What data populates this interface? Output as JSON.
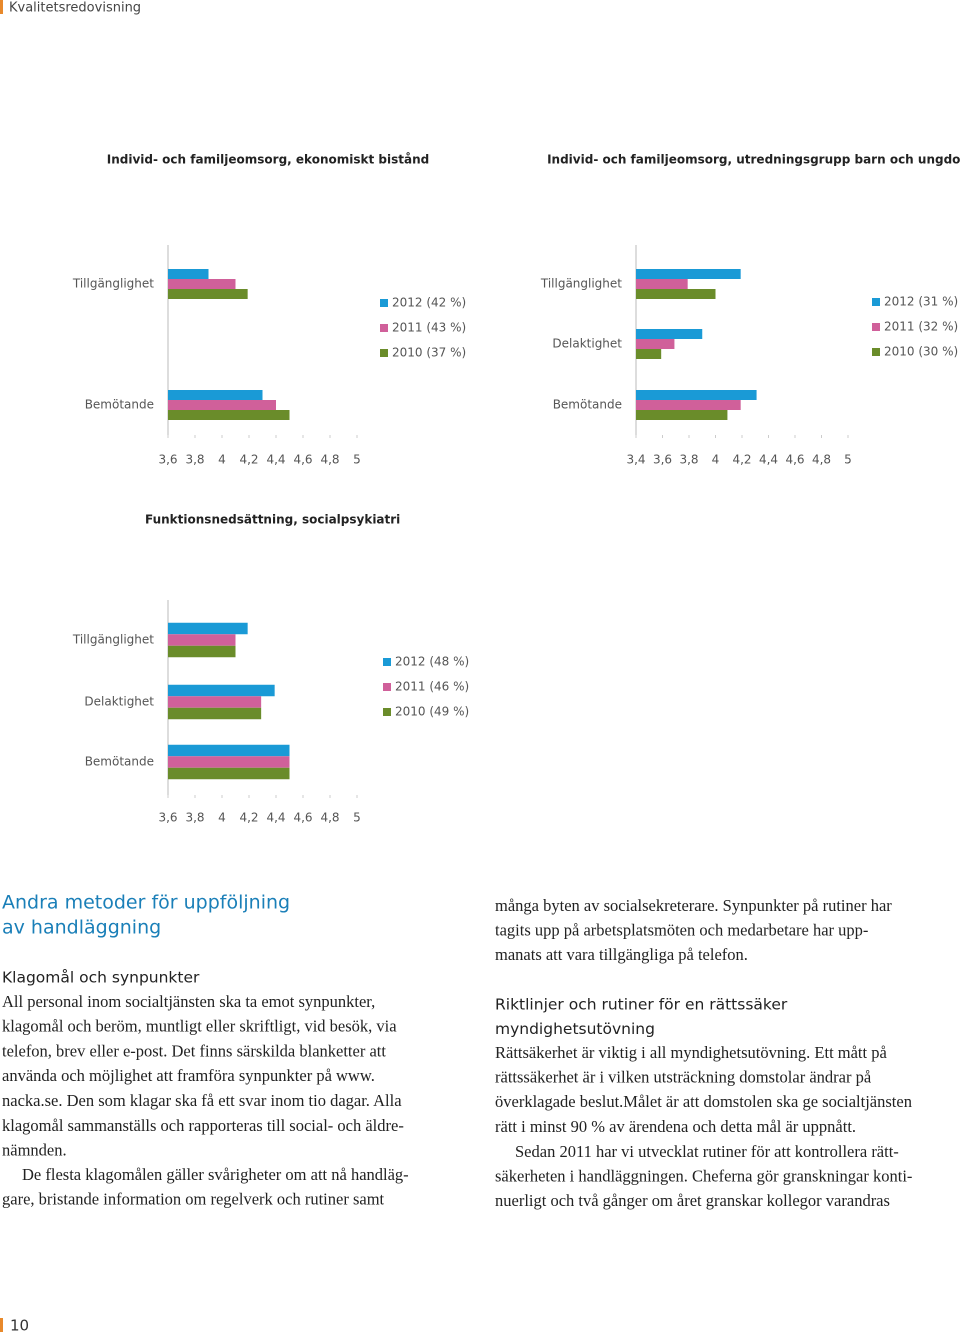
{
  "header": {
    "title": "Kvalitetsredovisning"
  },
  "chart_data": [
    {
      "type": "bar",
      "orientation": "horizontal",
      "title": "Individ- och familjeomsorg, ekonomiskt bistånd",
      "categories": [
        "Tillgänglighet",
        null,
        "Bemötande"
      ],
      "series": [
        {
          "name": "2012 (42 %)",
          "color": "#1a9ad6",
          "values": [
            3.9,
            null,
            4.3
          ]
        },
        {
          "name": "2011 (43 %)",
          "color": "#d0609a",
          "values": [
            4.1,
            null,
            4.4
          ]
        },
        {
          "name": "2010 (37 %)",
          "color": "#6a8c2a",
          "values": [
            4.19,
            null,
            4.5
          ]
        }
      ],
      "xlim": [
        3.6,
        5
      ],
      "xticks": [
        {
          "value": 3.6,
          "label": "3,6"
        },
        {
          "value": 3.8,
          "label": "3,8"
        },
        4,
        {
          "value": 4.2,
          "label": "4,2"
        },
        {
          "value": 4.4,
          "label": "4,4"
        },
        {
          "value": 4.6,
          "label": "4,6"
        },
        {
          "value": 4.8,
          "label": "4,8"
        },
        5
      ]
    },
    {
      "type": "bar",
      "orientation": "horizontal",
      "title": "Individ- och familjeomsorg, utredningsgrupp barn och ungdom",
      "categories": [
        "Tillgänglighet",
        "Delaktighet",
        "Bemötande"
      ],
      "series": [
        {
          "name": "2012 (31 %)",
          "color": "#1a9ad6",
          "values": [
            4.19,
            3.9,
            4.31
          ]
        },
        {
          "name": "2011 (32 %)",
          "color": "#d0609a",
          "values": [
            3.79,
            3.69,
            4.19
          ]
        },
        {
          "name": "2010 (30 %)",
          "color": "#6a8c2a",
          "values": [
            4.0,
            3.59,
            4.09
          ]
        }
      ],
      "xlim": [
        3.4,
        5
      ],
      "xticks": [
        {
          "value": 3.4,
          "label": "3,4"
        },
        {
          "value": 3.6,
          "label": "3,6"
        },
        {
          "value": 3.8,
          "label": "3,8"
        },
        4,
        {
          "value": 4.2,
          "label": "4,2"
        },
        {
          "value": 4.4,
          "label": "4,4"
        },
        {
          "value": 4.6,
          "label": "4,6"
        },
        {
          "value": 4.8,
          "label": "4,8"
        },
        5
      ]
    },
    {
      "type": "bar",
      "orientation": "horizontal",
      "title": "Funktionsnedsättning, socialpsykiatri",
      "categories": [
        "Tillgänglighet",
        "Delaktighet",
        "Bemötande"
      ],
      "series": [
        {
          "name": "2012 (48 %)",
          "color": "#1a9ad6",
          "values": [
            4.19,
            4.39,
            4.5
          ]
        },
        {
          "name": "2011 (46 %)",
          "color": "#d0609a",
          "values": [
            4.1,
            4.29,
            4.5
          ]
        },
        {
          "name": "2010 (49 %)",
          "color": "#6a8c2a",
          "values": [
            4.1,
            4.29,
            4.5
          ]
        }
      ],
      "xlim": [
        3.6,
        5
      ],
      "xticks": [
        {
          "value": 3.6,
          "label": "3,6"
        },
        {
          "value": 3.8,
          "label": "3,8"
        },
        4,
        {
          "value": 4.2,
          "label": "4,2"
        },
        {
          "value": 4.4,
          "label": "4,4"
        },
        {
          "value": 4.6,
          "label": "4,6"
        },
        {
          "value": 4.8,
          "label": "4,8"
        },
        5
      ]
    }
  ],
  "article": {
    "left": {
      "heading": [
        "Andra metoder för uppföljning",
        "av handläggning"
      ],
      "subheading": [
        "Klagomål och synpunkter"
      ],
      "paragraphs": [
        [
          "All personal inom socialtjänsten ska ta emot synpunkter,",
          "klagomål och beröm, muntligt eller skriftligt, vid besök, via",
          "telefon, brev eller e-post. Det finns särskilda blanketter att",
          "använda och möjlighet att framföra synpunkter på www.",
          "nacka.se. Den som klagar ska få ett svar inom tio dagar. Alla",
          "klagomål sammanställs och rapporteras till social- och äldre-",
          "nämnden."
        ],
        [
          "De flesta klagomålen gäller  svårigheter om att nå handläg-",
          "gare, bristande information om regelverk och rutiner samt"
        ]
      ]
    },
    "right": {
      "lead": [
        "många byten av socialsekreterare. Synpunkter på rutiner har",
        "tagits upp på arbetsplatsmöten och medarbetare har upp-",
        "manats att vara tillgängliga på telefon."
      ],
      "subheading": [
        "Riktlinjer och rutiner för en rättssäker",
        "myndighetsutövning"
      ],
      "paragraphs": [
        [
          "Rättsäkerhet är viktig i all myndighetsutövning. Ett mått på",
          "rättssäkerhet är i vilken utsträckning domstolar ändrar på",
          "överklagade beslut.Målet är att domstolen ska ge socialtjänsten",
          "rätt i minst 90 % av ärendena och detta mål är uppnått."
        ],
        [
          "Sedan 2011 har vi utvecklat rutiner för att kontrollera rätt-",
          "säkerheten i handläggningen. Cheferna gör granskningar konti-",
          "nuerligt och två gånger om året granskar kollegor varandras"
        ]
      ]
    }
  },
  "footer": {
    "page_number": 10
  }
}
